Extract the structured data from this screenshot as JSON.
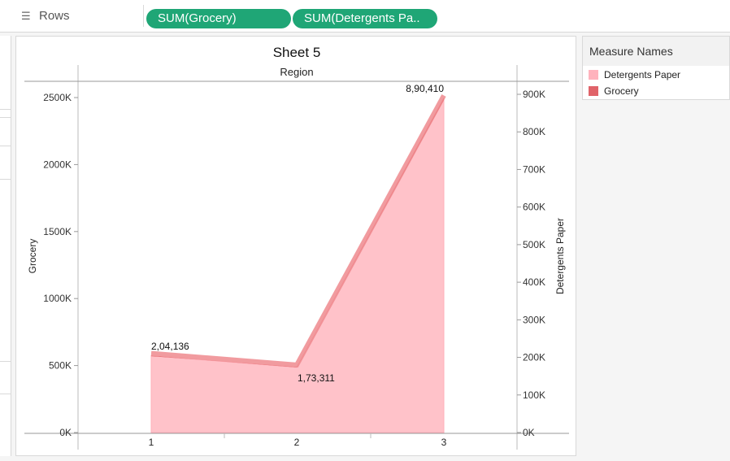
{
  "shelf": {
    "label": "Rows",
    "pills": [
      "SUM(Grocery)",
      "SUM(Detergents Pa.."
    ]
  },
  "chart_data": {
    "type": "area",
    "title": "Sheet 5",
    "header": "Region",
    "x": [
      1,
      2,
      3
    ],
    "xticks": [
      "1",
      "2",
      "3"
    ],
    "left_axis": {
      "label": "Grocery",
      "ylim": [
        0,
        2500000
      ],
      "ticks": [
        0,
        500000,
        1000000,
        1500000,
        2000000,
        2500000
      ],
      "tick_labels": [
        "0K",
        "500K",
        "1000K",
        "1500K",
        "2000K",
        "2500K"
      ]
    },
    "right_axis": {
      "label": "Detergents Paper",
      "ylim": [
        0,
        900000
      ],
      "ticks": [
        0,
        100000,
        200000,
        300000,
        400000,
        500000,
        600000,
        700000,
        800000,
        900000
      ],
      "tick_labels": [
        "0K",
        "100K",
        "200K",
        "300K",
        "400K",
        "500K",
        "600K",
        "700K",
        "800K",
        "900K"
      ]
    },
    "series": [
      {
        "name": "Detergents Paper",
        "axis": "right",
        "color": "#ffc2c9",
        "values": [
          204136,
          173311,
          890410
        ]
      },
      {
        "name": "Grocery",
        "axis": "left",
        "color": "#e0575a",
        "values": [
          570000,
          490000,
          2480000
        ]
      }
    ],
    "data_labels": [
      "2,04,136",
      "1,73,311",
      "8,90,410"
    ],
    "grid": false
  },
  "legend": {
    "title": "Measure Names",
    "items": [
      {
        "label": "Detergents Paper",
        "color": "#ffb3bd"
      },
      {
        "label": "Grocery",
        "color": "#e06369"
      }
    ]
  }
}
